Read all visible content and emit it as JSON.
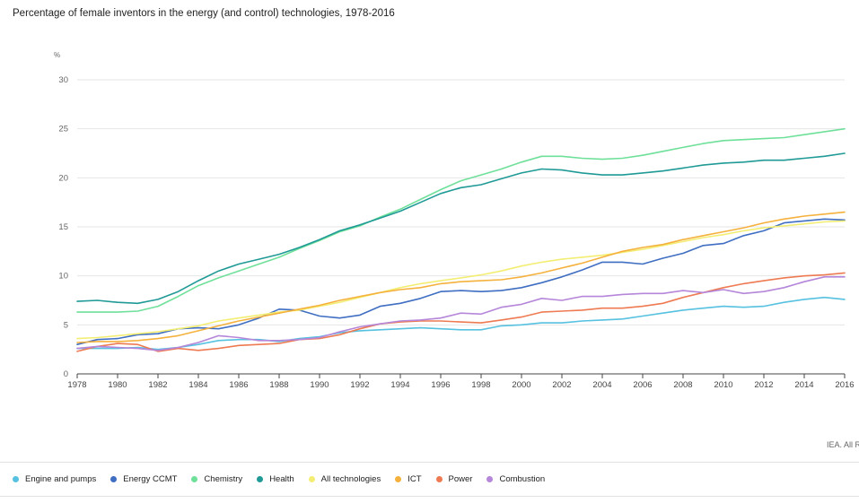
{
  "chart_data": {
    "type": "line",
    "title": "Percentage of female inventors in the energy (and control) technologies, 1978-2016",
    "ylabel": "%",
    "xlabel": "",
    "ylim": [
      0,
      30
    ],
    "yticks": [
      "0",
      "5",
      "10",
      "15",
      "20",
      "25",
      "30"
    ],
    "xlim": [
      1978,
      2016
    ],
    "xticks": [
      "1978",
      "1980",
      "1982",
      "1984",
      "1986",
      "1988",
      "1990",
      "1992",
      "1994",
      "1996",
      "1998",
      "2000",
      "2002",
      "2004",
      "2006",
      "2008",
      "2010",
      "2012",
      "2014",
      "2016"
    ],
    "grid": "horizontal",
    "legend_position": "bottom",
    "x": [
      1978,
      1979,
      1980,
      1981,
      1982,
      1983,
      1984,
      1985,
      1986,
      1987,
      1988,
      1989,
      1990,
      1991,
      1992,
      1993,
      1994,
      1995,
      1996,
      1997,
      1998,
      1999,
      2000,
      2001,
      2002,
      2003,
      2004,
      2005,
      2006,
      2007,
      2008,
      2009,
      2010,
      2011,
      2012,
      2013,
      2014,
      2015,
      2016
    ],
    "series": [
      {
        "name": "Engine and pumps",
        "color": "#56c1e0",
        "values": [
          2.6,
          2.6,
          2.6,
          2.7,
          2.5,
          2.7,
          3.0,
          3.4,
          3.5,
          3.5,
          3.3,
          3.6,
          3.8,
          4.2,
          4.4,
          4.5,
          4.6,
          4.7,
          4.6,
          4.5,
          4.5,
          4.9,
          5.0,
          5.2,
          5.2,
          5.4,
          5.5,
          5.6,
          5.9,
          6.2,
          6.5,
          6.7,
          6.9,
          6.8,
          6.9,
          7.3,
          7.6,
          7.8,
          7.6
        ]
      },
      {
        "name": "Energy CCMT",
        "color": "#3f6ec2",
        "values": [
          3.0,
          3.5,
          3.6,
          4.0,
          4.1,
          4.6,
          4.7,
          4.6,
          5.0,
          5.7,
          6.6,
          6.5,
          5.9,
          5.7,
          6.0,
          6.9,
          7.2,
          7.7,
          8.4,
          8.5,
          8.4,
          8.5,
          8.8,
          9.3,
          9.9,
          10.6,
          11.4,
          11.4,
          11.2,
          11.8,
          12.3,
          13.1,
          13.3,
          14.1,
          14.6,
          15.4,
          15.6,
          15.8,
          15.7
        ]
      },
      {
        "name": "Chemistry",
        "color": "#6fe09a",
        "values": [
          6.3,
          6.3,
          6.3,
          6.4,
          6.9,
          7.9,
          9.0,
          9.8,
          10.5,
          11.2,
          11.9,
          12.8,
          13.6,
          14.5,
          15.1,
          16.0,
          16.8,
          17.8,
          18.8,
          19.7,
          20.3,
          20.9,
          21.6,
          22.2,
          22.2,
          22.0,
          21.9,
          22.0,
          22.3,
          22.7,
          23.1,
          23.5,
          23.8,
          23.9,
          24.0,
          24.1,
          24.4,
          24.7,
          25.0
        ]
      },
      {
        "name": "Health",
        "color": "#1f9a96",
        "values": [
          7.4,
          7.5,
          7.3,
          7.2,
          7.6,
          8.4,
          9.5,
          10.5,
          11.2,
          11.7,
          12.2,
          12.9,
          13.7,
          14.6,
          15.2,
          15.9,
          16.6,
          17.5,
          18.4,
          19.0,
          19.3,
          19.9,
          20.5,
          20.9,
          20.8,
          20.5,
          20.3,
          20.3,
          20.5,
          20.7,
          21.0,
          21.3,
          21.5,
          21.6,
          21.8,
          21.8,
          22.0,
          22.2,
          22.5
        ]
      },
      {
        "name": "All technologies",
        "color": "#f3ee73",
        "values": [
          3.6,
          3.7,
          3.9,
          4.1,
          4.3,
          4.6,
          4.9,
          5.4,
          5.7,
          6.0,
          6.3,
          6.5,
          6.9,
          7.3,
          7.8,
          8.3,
          8.8,
          9.2,
          9.5,
          9.8,
          10.1,
          10.5,
          11.0,
          11.4,
          11.7,
          11.9,
          12.1,
          12.4,
          12.7,
          13.1,
          13.5,
          13.9,
          14.2,
          14.6,
          14.9,
          15.1,
          15.3,
          15.5,
          15.6
        ]
      },
      {
        "name": "ICT",
        "color": "#f5b13d",
        "values": [
          3.2,
          3.3,
          3.3,
          3.4,
          3.6,
          3.9,
          4.4,
          4.9,
          5.4,
          5.8,
          6.2,
          6.6,
          7.0,
          7.5,
          7.9,
          8.3,
          8.6,
          8.8,
          9.2,
          9.4,
          9.5,
          9.6,
          9.9,
          10.3,
          10.8,
          11.3,
          11.9,
          12.5,
          12.9,
          13.2,
          13.7,
          14.1,
          14.5,
          14.9,
          15.4,
          15.8,
          16.1,
          16.3,
          16.5
        ]
      },
      {
        "name": "Power",
        "color": "#ee7a52",
        "values": [
          2.3,
          2.8,
          3.1,
          3.0,
          2.3,
          2.6,
          2.4,
          2.6,
          2.9,
          3.0,
          3.1,
          3.5,
          3.6,
          4.0,
          4.6,
          5.1,
          5.3,
          5.4,
          5.4,
          5.3,
          5.2,
          5.5,
          5.8,
          6.3,
          6.4,
          6.5,
          6.7,
          6.7,
          6.9,
          7.2,
          7.8,
          8.3,
          8.8,
          9.2,
          9.5,
          9.8,
          10.0,
          10.1,
          10.3
        ]
      },
      {
        "name": "Combustion",
        "color": "#b586d9",
        "values": [
          2.6,
          2.8,
          2.7,
          2.6,
          2.4,
          2.7,
          3.2,
          3.9,
          3.7,
          3.4,
          3.4,
          3.5,
          3.7,
          4.3,
          4.8,
          5.1,
          5.4,
          5.5,
          5.7,
          6.2,
          6.1,
          6.8,
          7.1,
          7.7,
          7.5,
          7.9,
          7.9,
          8.1,
          8.2,
          8.2,
          8.5,
          8.3,
          8.6,
          8.2,
          8.4,
          8.8,
          9.4,
          9.9,
          9.9
        ]
      }
    ]
  },
  "credit": "IEA. All R"
}
